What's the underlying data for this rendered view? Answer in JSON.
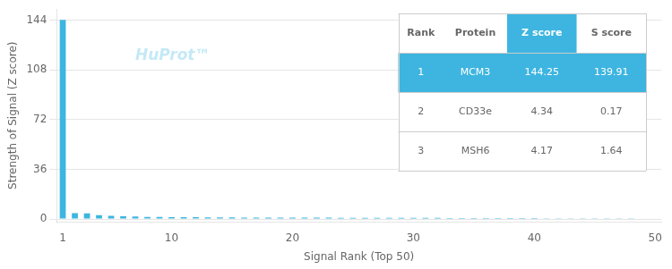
{
  "chart_data": {
    "type": "bar",
    "xlabel": "Signal Rank (Top 50)",
    "ylabel": "Strength of Signal (Z score)",
    "x": [
      1,
      2,
      3,
      4,
      5,
      6,
      7,
      8,
      9,
      10,
      11,
      12,
      13,
      14,
      15,
      16,
      17,
      18,
      19,
      20,
      21,
      22,
      23,
      24,
      25,
      26,
      27,
      28,
      29,
      30,
      31,
      32,
      33,
      34,
      35,
      36,
      37,
      38,
      39,
      40,
      41,
      42,
      43,
      44,
      45,
      46,
      47,
      48,
      49,
      50
    ],
    "values": [
      144.25,
      4.34,
      4.17,
      2.8,
      2.3,
      2.0,
      1.8,
      1.6,
      1.5,
      1.4,
      1.35,
      1.3,
      1.25,
      1.2,
      1.15,
      1.12,
      1.1,
      1.08,
      1.06,
      1.04,
      1.02,
      1.0,
      0.98,
      0.96,
      0.94,
      0.92,
      0.9,
      0.88,
      0.86,
      0.84,
      0.82,
      0.8,
      0.78,
      0.76,
      0.74,
      0.72,
      0.7,
      0.68,
      0.66,
      0.64,
      0.62,
      0.6,
      0.58,
      0.56,
      0.54,
      0.52,
      0.5,
      0.48,
      0.46,
      0.44
    ],
    "color": "#3db5e0",
    "xlim": [
      0.5,
      50.5
    ],
    "xticks": [
      1,
      10,
      20,
      30,
      40,
      50
    ],
    "ylim": [
      -2,
      152
    ],
    "yticks": [
      0,
      36,
      72,
      108,
      144
    ],
    "grid": true,
    "annotations": [
      "HuProt™"
    ],
    "table": {
      "headers": [
        "Rank",
        "Protein",
        "Z score",
        "S score"
      ],
      "rows": [
        [
          "1",
          "MCM3",
          "144.25",
          "139.91"
        ],
        [
          "2",
          "CD33e",
          "4.34",
          "0.17"
        ],
        [
          "3",
          "MSH6",
          "4.17",
          "1.64"
        ]
      ]
    }
  }
}
